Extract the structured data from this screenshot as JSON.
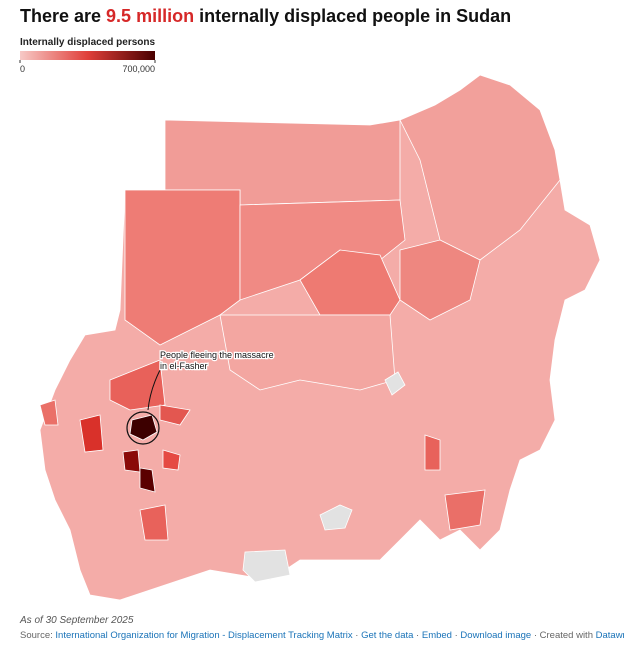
{
  "header": {
    "title_before": "There are ",
    "title_highlight": "9.5 million",
    "title_after": " internally displaced people in Sudan"
  },
  "legend": {
    "title": "Internally displaced persons",
    "ticks": [
      0,
      {
        "value": 700000,
        "label": "700,000"
      }
    ]
  },
  "annotation": {
    "lines": [
      "People fleeing the massacre",
      "in el-Fasher"
    ]
  },
  "footer": {
    "note": "As of 30 September 2025",
    "source_label": "Source:",
    "separator": "·",
    "links": [
      "International Organization for Migration - Displacement Tracking Matrix",
      "Get the data",
      "Embed",
      "Download image"
    ],
    "created_with": "Created with",
    "credit": "Datawrapper"
  }
}
